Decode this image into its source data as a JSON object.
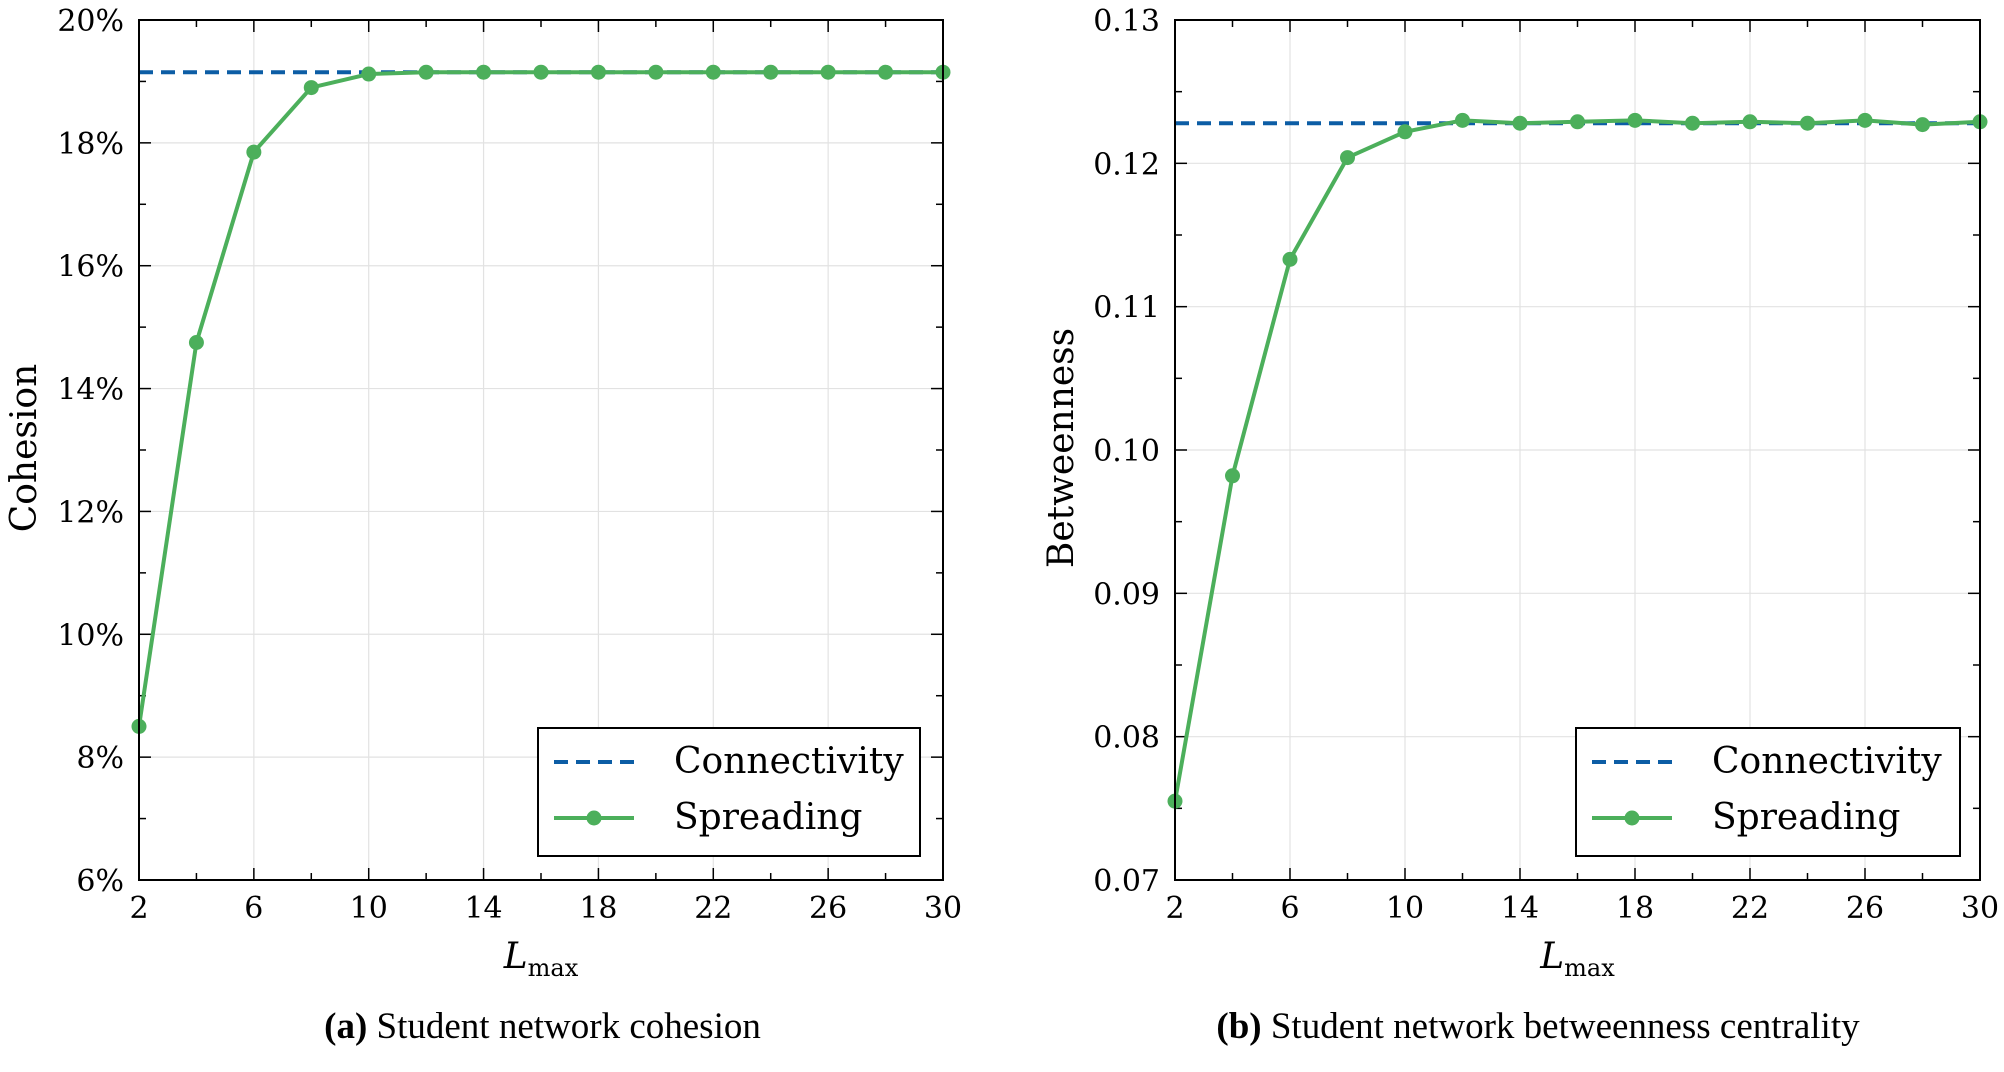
{
  "chart_data": [
    {
      "type": "line",
      "id": "cohesion",
      "title": "",
      "xlabel": "L",
      "xlabel_sub": "max",
      "ylabel": "Cohesion",
      "xlim": [
        2,
        30
      ],
      "ylim": [
        6,
        20
      ],
      "xticks": [
        2,
        6,
        10,
        14,
        18,
        22,
        26,
        30
      ],
      "yticks": [
        6,
        8,
        10,
        12,
        14,
        16,
        18,
        20
      ],
      "ytick_labels": [
        "6%",
        "8%",
        "10%",
        "12%",
        "14%",
        "16%",
        "18%",
        "20%"
      ],
      "grid": true,
      "legend_position": "bottom-right",
      "series": [
        {
          "name": "Connectivity",
          "style": "dashed",
          "color": "#0C5DA5",
          "x": [
            2,
            30
          ],
          "values": [
            19.15,
            19.15
          ]
        },
        {
          "name": "Spreading",
          "style": "solid-markers",
          "color": "#4CAF5B",
          "x": [
            2,
            4,
            6,
            8,
            10,
            12,
            14,
            16,
            18,
            20,
            22,
            24,
            26,
            28,
            30
          ],
          "values": [
            8.5,
            14.75,
            17.85,
            18.9,
            19.12,
            19.15,
            19.15,
            19.15,
            19.15,
            19.15,
            19.15,
            19.15,
            19.15,
            19.15,
            19.15
          ]
        }
      ]
    },
    {
      "type": "line",
      "id": "betweenness",
      "title": "",
      "xlabel": "L",
      "xlabel_sub": "max",
      "ylabel": "Betweenness",
      "xlim": [
        2,
        30
      ],
      "ylim": [
        0.07,
        0.13
      ],
      "xticks": [
        2,
        6,
        10,
        14,
        18,
        22,
        26,
        30
      ],
      "yticks": [
        0.07,
        0.08,
        0.09,
        0.1,
        0.11,
        0.12,
        0.13
      ],
      "ytick_labels": [
        "0.07",
        "0.08",
        "0.09",
        "0.10",
        "0.11",
        "0.12",
        "0.13"
      ],
      "grid": true,
      "legend_position": "bottom-right",
      "series": [
        {
          "name": "Connectivity",
          "style": "dashed",
          "color": "#0C5DA5",
          "x": [
            2,
            30
          ],
          "values": [
            0.1228,
            0.1228
          ]
        },
        {
          "name": "Spreading",
          "style": "solid-markers",
          "color": "#4CAF5B",
          "x": [
            2,
            4,
            6,
            8,
            10,
            12,
            14,
            16,
            18,
            20,
            22,
            24,
            26,
            28,
            30
          ],
          "values": [
            0.0755,
            0.0982,
            0.1133,
            0.1204,
            0.1222,
            0.123,
            0.1228,
            0.1229,
            0.123,
            0.1228,
            0.1229,
            0.1228,
            0.123,
            0.1227,
            0.1229
          ]
        }
      ]
    }
  ],
  "captions": [
    {
      "label": "(a)",
      "text": "Student network cohesion"
    },
    {
      "label": "(b)",
      "text": "Student network betweenness centrality"
    }
  ]
}
